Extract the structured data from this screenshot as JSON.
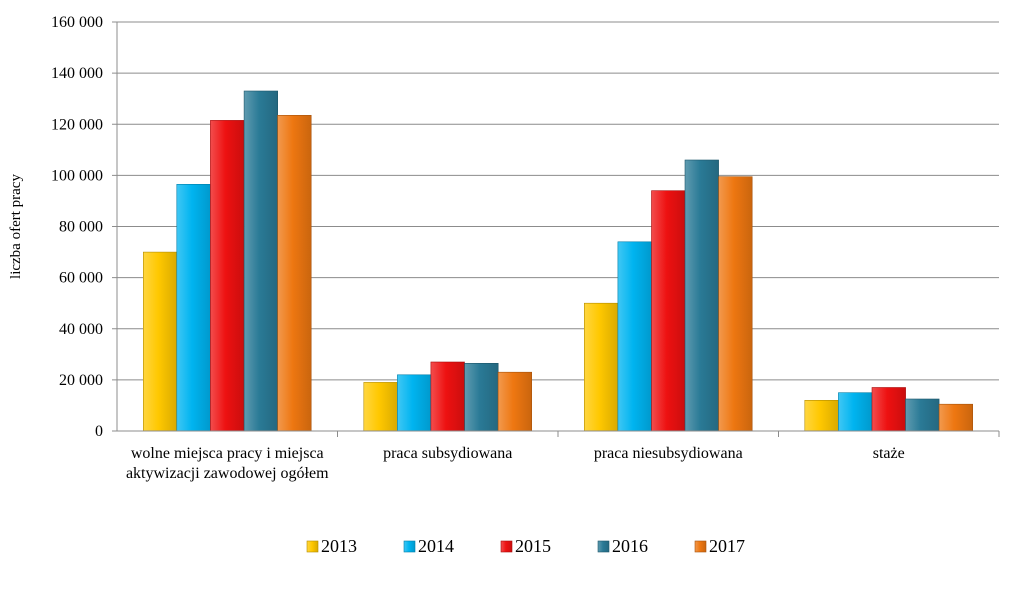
{
  "chart_data": {
    "type": "bar",
    "ylabel": "liczba ofert pracy",
    "xlabel": "",
    "title": "",
    "ylim": [
      0,
      160000
    ],
    "yticks": [
      0,
      20000,
      40000,
      60000,
      80000,
      100000,
      120000,
      140000,
      160000
    ],
    "ytick_labels": [
      "0",
      "20 000",
      "40 000",
      "60 000",
      "80 000",
      "100 000",
      "120 000",
      "140 000",
      "160 000"
    ],
    "grid": true,
    "legend_position": "bottom",
    "categories": [
      [
        "wolne miejsca pracy i miejsca",
        "aktywizacji zawodowej ogółem"
      ],
      [
        "praca subsydiowana"
      ],
      [
        "praca niesubsydiowana"
      ],
      [
        "staże"
      ]
    ],
    "series": [
      {
        "name": "2013",
        "color": "#FFC800",
        "values": [
          70000,
          19000,
          50000,
          12000
        ]
      },
      {
        "name": "2014",
        "color": "#00B4F0",
        "values": [
          96500,
          22000,
          74000,
          15000
        ]
      },
      {
        "name": "2015",
        "color": "#EE1111",
        "values": [
          121500,
          27000,
          94000,
          17000
        ]
      },
      {
        "name": "2016",
        "color": "#2A7A96",
        "values": [
          133000,
          26500,
          106000,
          12500
        ]
      },
      {
        "name": "2017",
        "color": "#EE7711",
        "values": [
          123500,
          23000,
          99500,
          10500
        ]
      }
    ]
  }
}
